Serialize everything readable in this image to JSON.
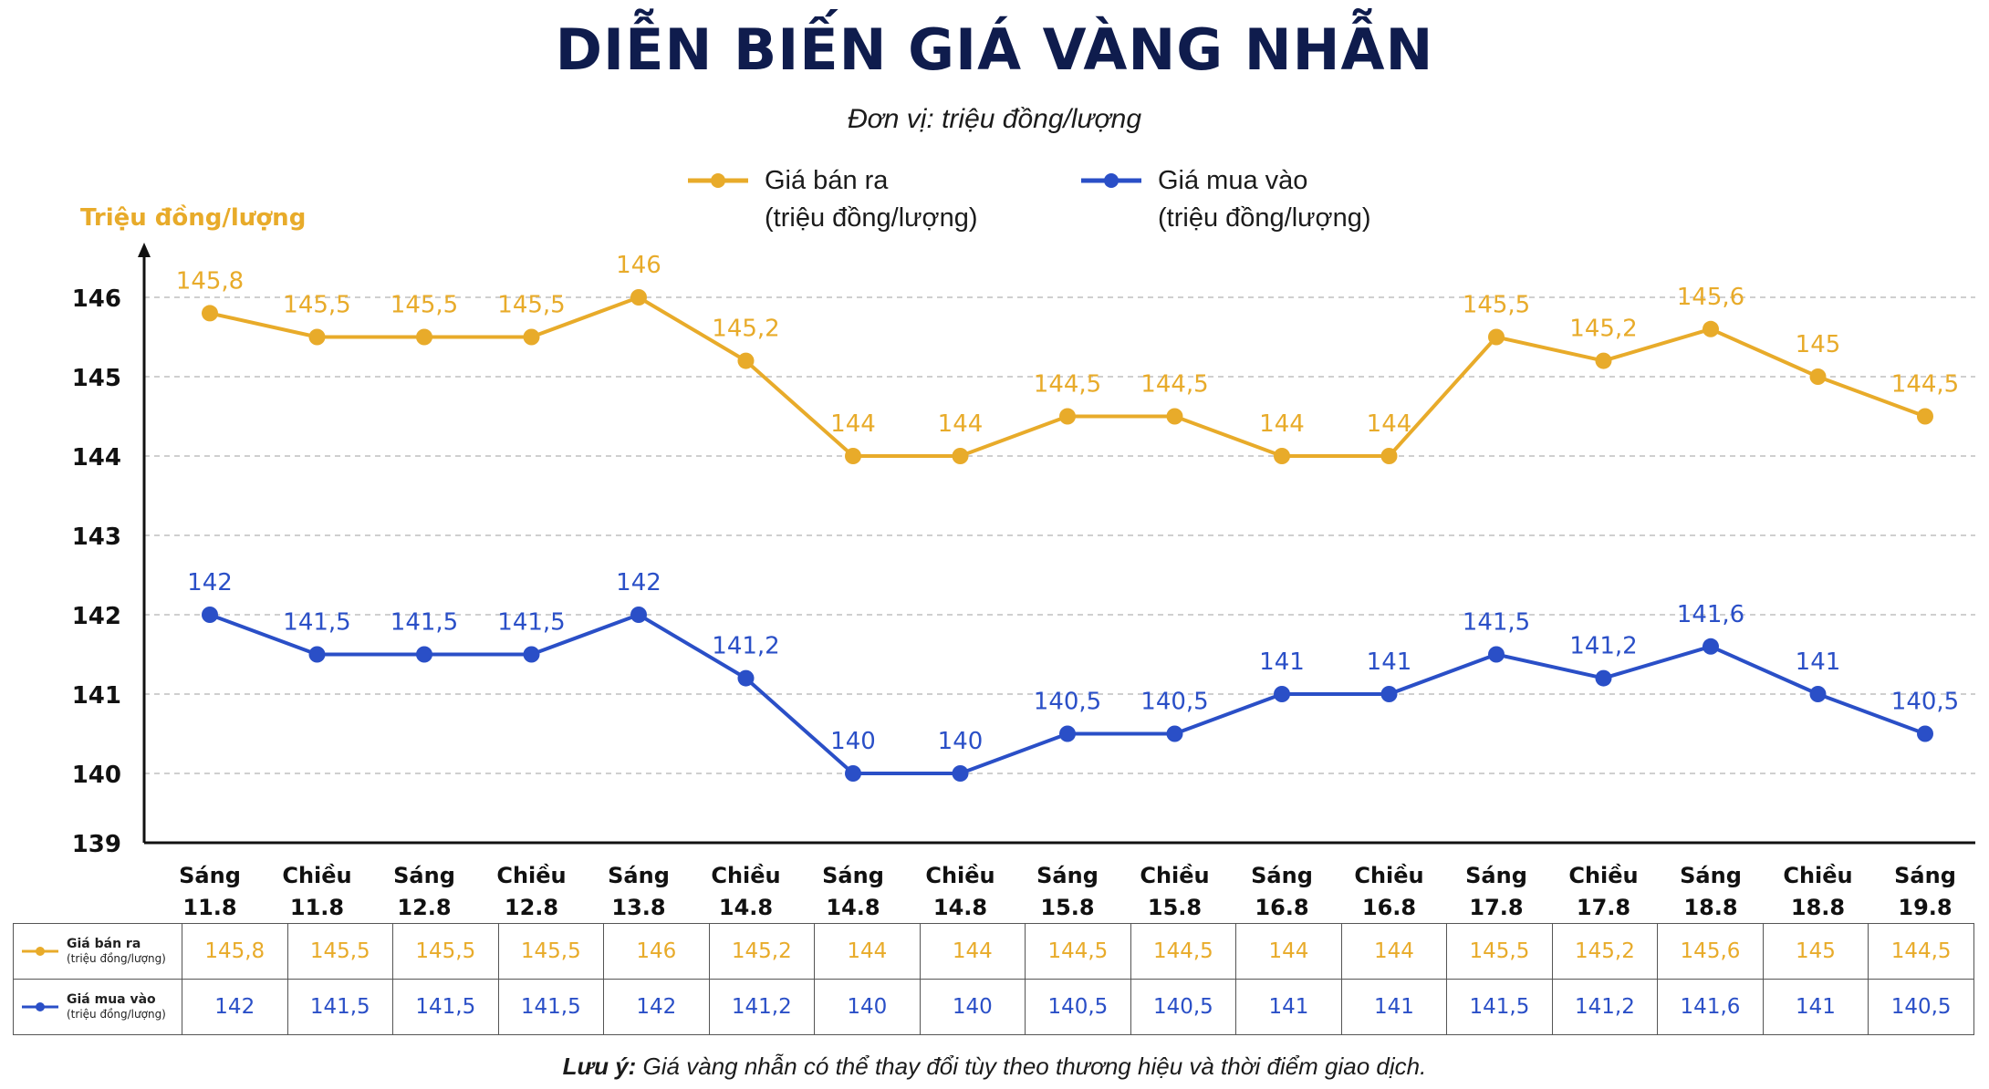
{
  "title": "DIỄN BIẾN GIÁ VÀNG NHẪN",
  "subtitle": "Đơn vị: triệu đồng/lượng",
  "legend": [
    {
      "line1": "Giá bán ra",
      "line2": "(triệu đồng/lượng)",
      "color": "#e8ab2a"
    },
    {
      "line1": "Giá mua vào",
      "line2": "(triệu đồng/lượng)",
      "color": "#2a4fc7"
    }
  ],
  "note": {
    "label": "Lưu ý:",
    "text": "Giá vàng nhẫn có thể thay đổi tùy theo thương hiệu và thời điểm giao dịch."
  },
  "chart_data": {
    "type": "line",
    "title": "DIỄN BIẾN GIÁ VÀNG NHẪN",
    "subtitle": "Đơn vị: triệu đồng/lượng",
    "ylabel": "Triệu đồng/lượng",
    "ylim": [
      139,
      146
    ],
    "yticks": [
      "139",
      "140",
      "141",
      "142",
      "143",
      "144",
      "145",
      "146"
    ],
    "grid": true,
    "legend_position": "top",
    "categories": [
      {
        "line1": "Sáng",
        "line2": "11.8"
      },
      {
        "line1": "Chiều",
        "line2": "11.8"
      },
      {
        "line1": "Sáng",
        "line2": "12.8"
      },
      {
        "line1": "Chiều",
        "line2": "12.8"
      },
      {
        "line1": "Sáng",
        "line2": "13.8"
      },
      {
        "line1": "Chiều",
        "line2": "14.8"
      },
      {
        "line1": "Sáng",
        "line2": "14.8"
      },
      {
        "line1": "Chiều",
        "line2": "14.8"
      },
      {
        "line1": "Sáng",
        "line2": "15.8"
      },
      {
        "line1": "Chiều",
        "line2": "15.8"
      },
      {
        "line1": "Sáng",
        "line2": "16.8"
      },
      {
        "line1": "Chiều",
        "line2": "16.8"
      },
      {
        "line1": "Sáng",
        "line2": "17.8"
      },
      {
        "line1": "Chiều",
        "line2": "17.8"
      },
      {
        "line1": "Sáng",
        "line2": "18.8"
      },
      {
        "line1": "Chiều",
        "line2": "18.8"
      },
      {
        "line1": "Sáng",
        "line2": "19.8"
      }
    ],
    "series": [
      {
        "name": "Giá bán ra (triệu đồng/lượng)",
        "color": "#e8ab2a",
        "values": [
          145.8,
          145.5,
          145.5,
          145.5,
          146,
          145.2,
          144,
          144,
          144.5,
          144.5,
          144,
          144,
          145.5,
          145.2,
          145.6,
          145,
          144.5
        ],
        "labels": [
          "145,8",
          "145,5",
          "145,5",
          "145,5",
          "146",
          "145,2",
          "144",
          "144",
          "144,5",
          "144,5",
          "144",
          "144",
          "145,5",
          "145,2",
          "145,6",
          "145",
          "144,5"
        ]
      },
      {
        "name": "Giá mua vào (triệu đồng/lượng)",
        "color": "#2a4fc7",
        "values": [
          142,
          141.5,
          141.5,
          141.5,
          142,
          141.2,
          140,
          140,
          140.5,
          140.5,
          141,
          141,
          141.5,
          141.2,
          141.6,
          141,
          140.5
        ],
        "labels": [
          "142",
          "141,5",
          "141,5",
          "141,5",
          "142",
          "141,2",
          "140",
          "140",
          "140,5",
          "140,5",
          "141",
          "141",
          "141,5",
          "141,2",
          "141,6",
          "141",
          "140,5"
        ]
      }
    ]
  },
  "table": {
    "rows": [
      {
        "line1": "Giá bán ra",
        "line2": "(triệu đồng/lượng)"
      },
      {
        "line1": "Giá mua vào",
        "line2": "(triệu đồng/lượng)"
      }
    ]
  }
}
